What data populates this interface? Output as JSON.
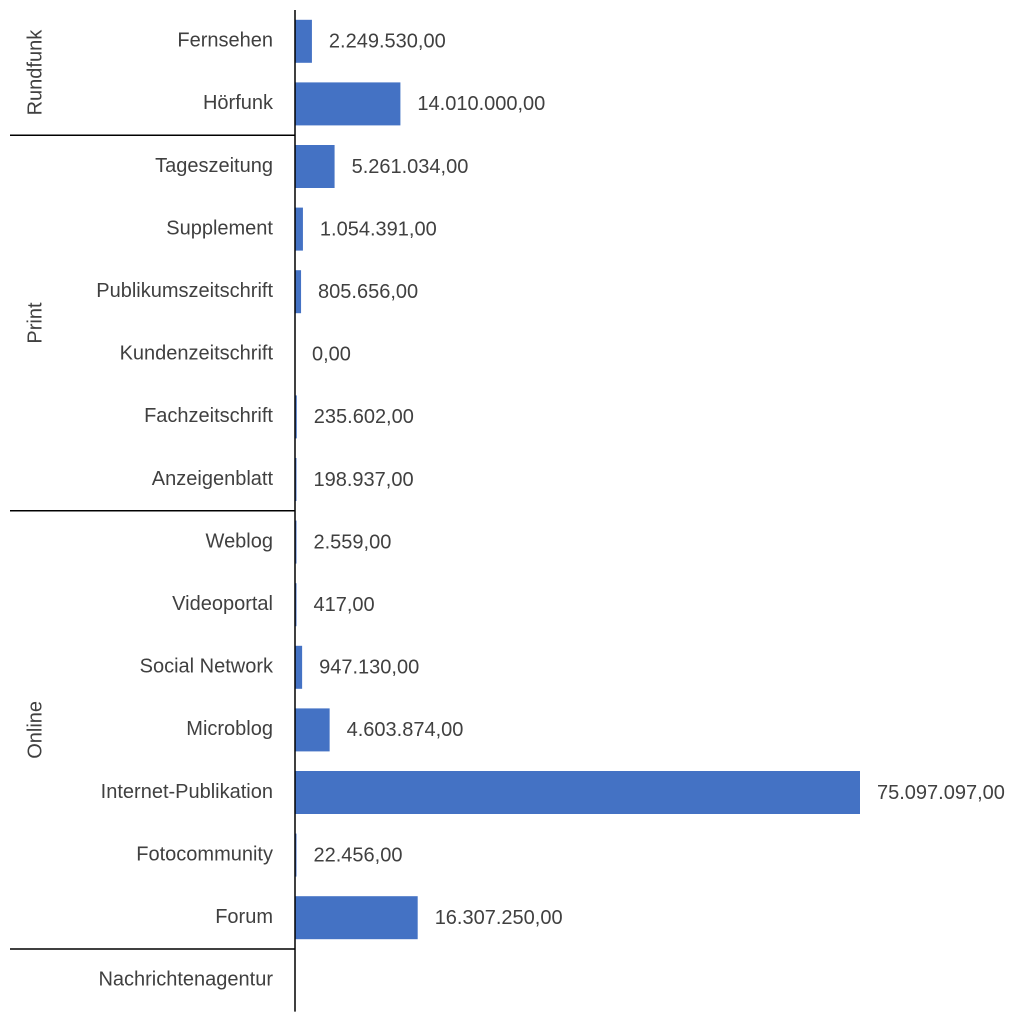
{
  "chart_data": {
    "type": "bar",
    "orientation": "horizontal",
    "bar_color": "#4472C4",
    "axis_color": "#000000",
    "text_color": "#404040",
    "xlim": [
      0,
      75097097
    ],
    "groups": [
      {
        "name": "Rundfunk",
        "categories": [
          "Fernsehen",
          "Hörfunk"
        ]
      },
      {
        "name": "Print",
        "categories": [
          "Tageszeitung",
          "Supplement",
          "Publikumszeitschrift",
          "Kundenzeitschrift",
          "Fachzeitschrift",
          "Anzeigenblatt"
        ]
      },
      {
        "name": "Online",
        "categories": [
          "Weblog",
          "Videoportal",
          "Social Network",
          "Microblog",
          "Internet-Publikation",
          "Fotocommunity",
          "Forum"
        ]
      },
      {
        "name": "",
        "categories": [
          "Nachrichtenagentur"
        ]
      }
    ],
    "categories": [
      "Fernsehen",
      "Hörfunk",
      "Tageszeitung",
      "Supplement",
      "Publikumszeitschrift",
      "Kundenzeitschrift",
      "Fachzeitschrift",
      "Anzeigenblatt",
      "Weblog",
      "Videoportal",
      "Social Network",
      "Microblog",
      "Internet-Publikation",
      "Fotocommunity",
      "Forum",
      "Nachrichtenagentur"
    ],
    "values": [
      2249530,
      14010000,
      5261034,
      1054391,
      805656,
      0,
      235602,
      198937,
      2559,
      417,
      947130,
      4603874,
      75097097,
      22456,
      16307250,
      null
    ],
    "value_labels": [
      "2.249.530,00",
      "14.010.000,00",
      "5.261.034,00",
      "1.054.391,00",
      "805.656,00",
      "0,00",
      "235.602,00",
      "198.937,00",
      "2.559,00",
      "417,00",
      "947.130,00",
      "4.603.874,00",
      "75.097.097,00",
      "22.456,00",
      "16.307.250,00",
      ""
    ]
  }
}
